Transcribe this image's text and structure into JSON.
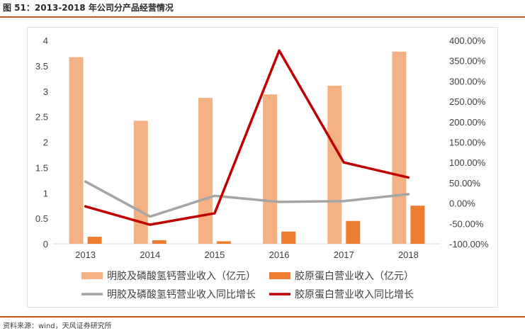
{
  "figure": {
    "title": "图 51：2013-2018 年公司分产品经营情况",
    "source": "资料来源：wind，天风证券研究所"
  },
  "chart_data": {
    "type": "bar",
    "categories": [
      "2013",
      "2014",
      "2015",
      "2016",
      "2017",
      "2018"
    ],
    "series": [
      {
        "name": "明胶及磷酸氢钙营业收入（亿元）",
        "kind": "bar",
        "axis": "left",
        "color": "#f4b183",
        "values": [
          3.67,
          2.42,
          2.87,
          2.94,
          3.11,
          3.78
        ]
      },
      {
        "name": "胶原蛋白营业收入（亿元）",
        "kind": "bar",
        "axis": "left",
        "color": "#ed7d31",
        "values": [
          0.14,
          0.07,
          0.05,
          0.24,
          0.45,
          0.75
        ]
      },
      {
        "name": "明胶及磷酸氢钙营业收入同比增长",
        "kind": "line",
        "axis": "right",
        "color": "#a5a5a5",
        "values": [
          53,
          -33,
          18,
          3,
          5,
          22
        ]
      },
      {
        "name": "胶原蛋白营业收入同比增长",
        "kind": "line",
        "axis": "right",
        "color": "#c00000",
        "values": [
          -8,
          -53,
          -25,
          375,
          100,
          63
        ]
      }
    ],
    "left_axis": {
      "min": 0,
      "max": 4,
      "ticks": [
        0,
        0.5,
        1,
        1.5,
        2,
        2.5,
        3,
        3.5,
        4
      ],
      "tick_labels": [
        "0",
        "0.5",
        "1",
        "1.5",
        "2",
        "2.5",
        "3",
        "3.5",
        "4"
      ]
    },
    "right_axis": {
      "min": -100,
      "max": 400,
      "ticks": [
        -100,
        -50,
        0,
        50,
        100,
        150,
        200,
        250,
        300,
        350,
        400
      ],
      "tick_labels": [
        "-100.00%",
        "-50.00%",
        "0.00%",
        "50.00%",
        "100.00%",
        "150.00%",
        "200.00%",
        "250.00%",
        "300.00%",
        "350.00%",
        "400.00%"
      ]
    },
    "grid": false,
    "legend_position": "bottom"
  }
}
